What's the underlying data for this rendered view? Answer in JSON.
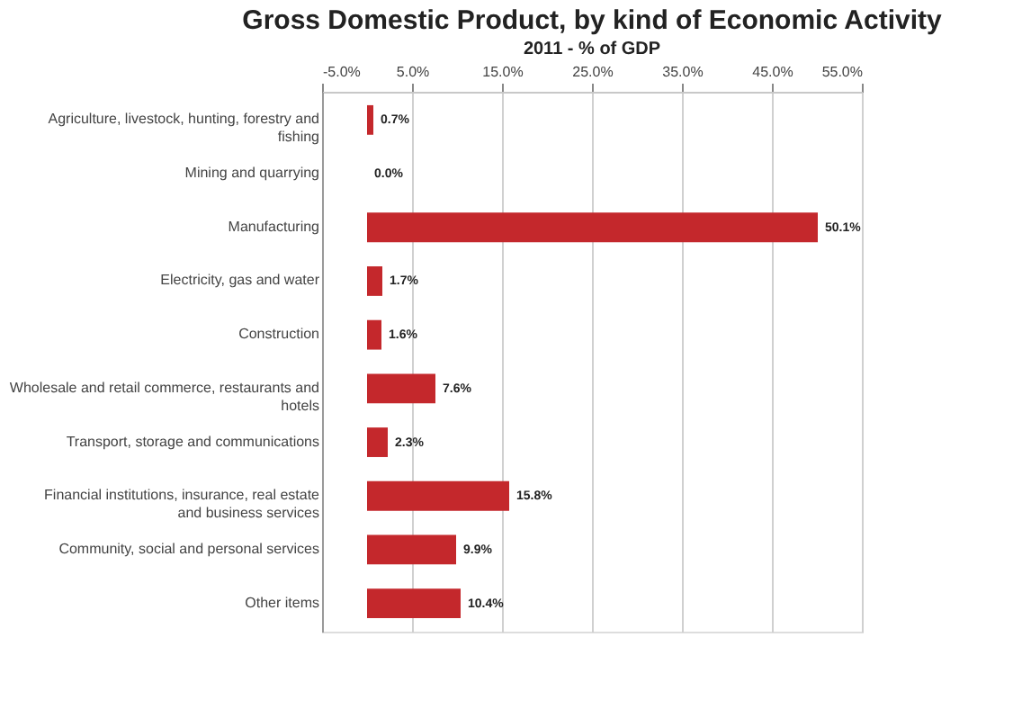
{
  "chart_data": {
    "type": "bar",
    "orientation": "horizontal",
    "title": "Gross Domestic Product, by kind of Economic Activity",
    "subtitle": "2011 - % of GDP",
    "categories": [
      "Agriculture, livestock, hunting, forestry and fishing",
      "Mining and quarrying",
      "Manufacturing",
      "Electricity, gas and water",
      "Construction",
      "Wholesale and retail commerce, restaurants and hotels",
      "Transport, storage and communications",
      "Financial institutions, insurance, real estate and business services",
      "Community, social and personal services",
      "Other items"
    ],
    "values": [
      0.7,
      0.0,
      50.1,
      1.7,
      1.6,
      7.6,
      2.3,
      15.8,
      9.9,
      10.4
    ],
    "color": "#c4282c",
    "xlim": [
      -5,
      55
    ],
    "xticks": [
      {
        "value": -5,
        "label": "-5.0%"
      },
      {
        "value": 5,
        "label": "5.0%"
      },
      {
        "value": 15,
        "label": "15.0%"
      },
      {
        "value": 25,
        "label": "25.0%"
      },
      {
        "value": 35,
        "label": "35.0%"
      },
      {
        "value": 45,
        "label": "45.0%"
      },
      {
        "value": 55,
        "label": "55.0%"
      }
    ],
    "value_labels": [
      "0.7%",
      "0.0%",
      "50.1%",
      "1.7%",
      "1.6%",
      "7.6%",
      "2.3%",
      "15.8%",
      "9.9%",
      "10.4%"
    ],
    "grid": "x"
  }
}
